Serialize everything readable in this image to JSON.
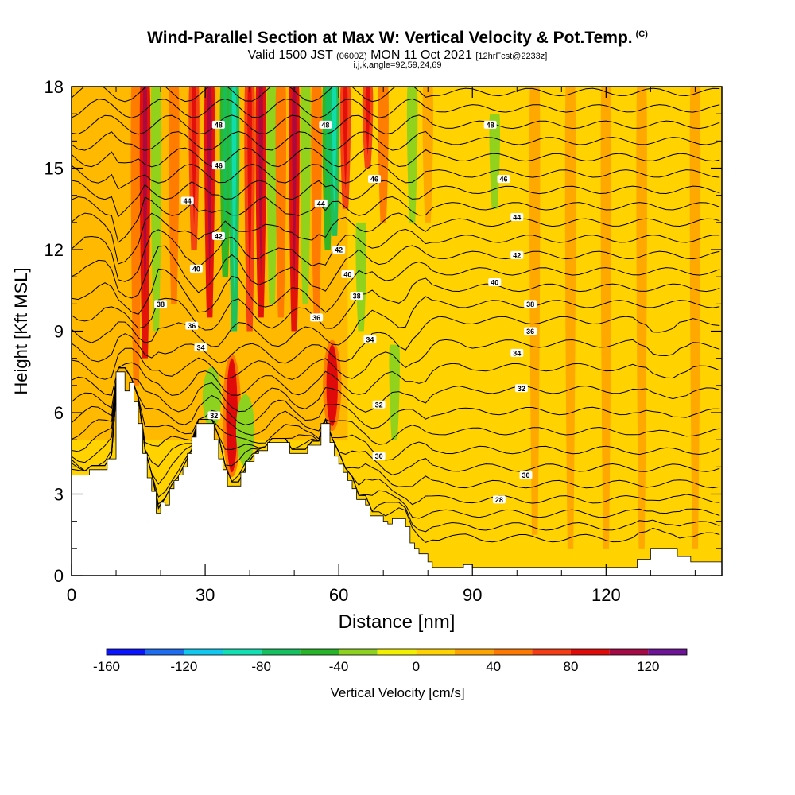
{
  "header": {
    "title": "Wind-Parallel Section at Max W: Vertical Velocity & Pot.Temp.",
    "copyright": "(C)",
    "valid_main": "Valid 1500 JST",
    "valid_utc": "(0600Z)",
    "valid_date": "MON 11 Oct 2021",
    "forecast": "[12hrFcst@2233z]",
    "params": "i,j,k,angle=92,59,24,69"
  },
  "chart_data": {
    "type": "heatmap",
    "title": "Wind-Parallel Section at Max W: Vertical Velocity & Pot.Temp.",
    "xlabel": "Distance [nm]",
    "ylabel": "Height [Kft MSL]",
    "xlim": [
      0,
      146
    ],
    "ylim": [
      0,
      18
    ],
    "xticks": [
      0,
      30,
      60,
      90,
      120
    ],
    "yticks": [
      0,
      3,
      6,
      9,
      12,
      15,
      18
    ],
    "colorbar": {
      "label": "Vertical Velocity [cm/s]",
      "ticks": [
        -160,
        -120,
        -80,
        -40,
        0,
        40,
        80,
        120
      ],
      "bins": [
        -160,
        -140,
        -120,
        -100,
        -80,
        -60,
        -40,
        -20,
        0,
        20,
        40,
        60,
        80,
        100,
        120,
        140
      ],
      "colors": [
        "#0a14ff",
        "#1e6cf0",
        "#10c8f0",
        "#10e0b4",
        "#14c060",
        "#28b428",
        "#8cd21e",
        "#f0f000",
        "#ffd200",
        "#ffa500",
        "#ff7800",
        "#f53c14",
        "#e10a0a",
        "#a50a46",
        "#6e1496"
      ]
    },
    "terrain": [
      [
        0,
        3.7
      ],
      [
        4,
        3.7
      ],
      [
        4,
        3.9
      ],
      [
        8,
        3.9
      ],
      [
        8,
        4.3
      ],
      [
        10,
        4.3
      ],
      [
        10,
        7.5
      ],
      [
        12,
        7.5
      ],
      [
        12,
        6.8
      ],
      [
        13,
        6.8
      ],
      [
        13,
        7.1
      ],
      [
        14,
        7.1
      ],
      [
        14,
        6.4
      ],
      [
        15,
        6.4
      ],
      [
        15,
        5.6
      ],
      [
        16,
        5.6
      ],
      [
        16,
        4.5
      ],
      [
        17,
        4.5
      ],
      [
        17,
        3.6
      ],
      [
        18,
        3.6
      ],
      [
        18,
        3.1
      ],
      [
        19,
        3.1
      ],
      [
        19,
        2.3
      ],
      [
        20,
        2.3
      ],
      [
        20,
        2.7
      ],
      [
        21,
        2.7
      ],
      [
        21,
        2.6
      ],
      [
        22,
        2.6
      ],
      [
        22,
        3.2
      ],
      [
        23,
        3.2
      ],
      [
        23,
        3.5
      ],
      [
        24,
        3.5
      ],
      [
        24,
        3.7
      ],
      [
        25,
        3.7
      ],
      [
        25,
        4.0
      ],
      [
        26,
        4.0
      ],
      [
        26,
        4.5
      ],
      [
        27,
        4.5
      ],
      [
        27,
        5.1
      ],
      [
        28,
        5.1
      ],
      [
        28,
        5.6
      ],
      [
        32,
        5.6
      ],
      [
        32,
        5.0
      ],
      [
        33,
        5.0
      ],
      [
        33,
        4.3
      ],
      [
        34,
        4.3
      ],
      [
        34,
        3.9
      ],
      [
        35,
        3.9
      ],
      [
        35,
        3.3
      ],
      [
        38,
        3.3
      ],
      [
        38,
        3.8
      ],
      [
        39,
        3.8
      ],
      [
        39,
        4.2
      ],
      [
        41,
        4.2
      ],
      [
        41,
        4.5
      ],
      [
        42,
        4.5
      ],
      [
        42,
        4.6
      ],
      [
        44,
        4.6
      ],
      [
        44,
        4.9
      ],
      [
        49,
        4.9
      ],
      [
        49,
        4.5
      ],
      [
        53,
        4.5
      ],
      [
        53,
        4.8
      ],
      [
        56,
        4.8
      ],
      [
        56,
        5.6
      ],
      [
        58,
        5.6
      ],
      [
        58,
        4.9
      ],
      [
        59,
        4.9
      ],
      [
        59,
        4.4
      ],
      [
        60,
        4.4
      ],
      [
        60,
        4.1
      ],
      [
        61,
        4.1
      ],
      [
        61,
        3.8
      ],
      [
        62,
        3.8
      ],
      [
        62,
        3.5
      ],
      [
        63,
        3.5
      ],
      [
        63,
        3.2
      ],
      [
        64,
        3.2
      ],
      [
        64,
        2.8
      ],
      [
        66,
        2.8
      ],
      [
        66,
        2.6
      ],
      [
        67,
        2.6
      ],
      [
        67,
        2.2
      ],
      [
        70,
        2.2
      ],
      [
        70,
        2.0
      ],
      [
        71,
        2.0
      ],
      [
        71,
        1.9
      ],
      [
        72,
        1.9
      ],
      [
        72,
        2.1
      ],
      [
        75,
        2.1
      ],
      [
        75,
        1.8
      ],
      [
        76,
        1.8
      ],
      [
        76,
        1.2
      ],
      [
        77,
        1.2
      ],
      [
        77,
        1.0
      ],
      [
        78,
        1.0
      ],
      [
        78,
        0.8
      ],
      [
        80,
        0.8
      ],
      [
        80,
        0.5
      ],
      [
        81,
        0.5
      ],
      [
        81,
        0.3
      ],
      [
        88,
        0.3
      ],
      [
        88,
        0.4
      ],
      [
        90,
        0.4
      ],
      [
        90,
        0.3
      ],
      [
        102,
        0.3
      ],
      [
        102,
        0.3
      ],
      [
        127,
        0.3
      ],
      [
        127,
        0.6
      ],
      [
        130,
        0.6
      ],
      [
        130,
        1.0
      ],
      [
        136,
        1.0
      ],
      [
        136,
        0.7
      ],
      [
        139,
        0.7
      ],
      [
        139,
        0.5
      ],
      [
        146,
        0.5
      ],
      [
        146,
        0
      ]
    ],
    "vertical_velocity_plumes": [
      {
        "x": 14.5,
        "z0": 7.0,
        "z1": 18,
        "w": 40
      },
      {
        "x": 16.5,
        "z0": 8.0,
        "z1": 18,
        "w": 80
      },
      {
        "x": 19.0,
        "z0": 9.0,
        "z1": 18,
        "w": -40
      },
      {
        "x": 23.0,
        "z0": 10.0,
        "z1": 18,
        "w": 40
      },
      {
        "x": 27.5,
        "z0": 12.0,
        "z1": 18,
        "w": 60
      },
      {
        "x": 31.0,
        "z0": 9.5,
        "z1": 18,
        "w": 80
      },
      {
        "x": 34.5,
        "z0": 11.0,
        "z1": 18,
        "w": -60
      },
      {
        "x": 36.5,
        "z0": 9.0,
        "z1": 18,
        "w": -80
      },
      {
        "x": 40.0,
        "z0": 9.0,
        "z1": 18,
        "w": 60
      },
      {
        "x": 42.5,
        "z0": 9.5,
        "z1": 18,
        "w": 80
      },
      {
        "x": 45.0,
        "z0": 10.0,
        "z1": 18,
        "w": -40
      },
      {
        "x": 47.0,
        "z0": 9.5,
        "z1": 18,
        "w": 40
      },
      {
        "x": 50.0,
        "z0": 9.0,
        "z1": 18,
        "w": 80
      },
      {
        "x": 52.5,
        "z0": 10.0,
        "z1": 18,
        "w": -40
      },
      {
        "x": 55.0,
        "z0": 9.5,
        "z1": 18,
        "w": 40
      },
      {
        "x": 57.5,
        "z0": 12.0,
        "z1": 18,
        "w": -60
      },
      {
        "x": 59.0,
        "z0": 12.5,
        "z1": 18,
        "w": -80
      },
      {
        "x": 61.5,
        "z0": 13.5,
        "z1": 18,
        "w": 60
      },
      {
        "x": 65.0,
        "z0": 9.0,
        "z1": 13.0,
        "w": -40
      },
      {
        "x": 66.5,
        "z0": 15.0,
        "z1": 18,
        "w": 60
      },
      {
        "x": 70.0,
        "z0": 13.0,
        "z1": 18,
        "w": 40
      },
      {
        "x": 72.5,
        "z0": 5.0,
        "z1": 8.5,
        "w": -40
      },
      {
        "x": 76.5,
        "z0": 13.0,
        "z1": 18,
        "w": -40
      },
      {
        "x": 80.0,
        "z0": 13.0,
        "z1": 18,
        "w": 20
      },
      {
        "x": 95.0,
        "z0": 13.5,
        "z1": 17.0,
        "w": -40
      },
      {
        "x": 104.0,
        "z0": 1.5,
        "z1": 18,
        "w": 20
      },
      {
        "x": 112.0,
        "z0": 1.0,
        "z1": 18,
        "w": 20
      },
      {
        "x": 120.0,
        "z0": 1.0,
        "z1": 18,
        "w": 20
      },
      {
        "x": 128.0,
        "z0": 1.0,
        "z1": 18,
        "w": 20
      },
      {
        "x": 140.0,
        "z0": 1.0,
        "z1": 18,
        "w": 20
      }
    ],
    "vertical_velocity_cores": [
      {
        "x": 36.0,
        "z0": 3.8,
        "z1": 8.0,
        "w": 80
      },
      {
        "x": 58.5,
        "z0": 5.5,
        "z1": 8.5,
        "w": 80
      },
      {
        "x": 31.5,
        "z0": 5.6,
        "z1": 7.5,
        "w": -40
      },
      {
        "x": 39.0,
        "z0": 4.2,
        "z1": 6.5,
        "w": -40
      }
    ],
    "potential_temperature_contours": {
      "label_values": [
        28,
        30,
        32,
        34,
        36,
        38,
        40,
        42,
        44,
        46,
        48
      ],
      "labels": [
        {
          "x": 32,
          "z": 5.9,
          "text": "32"
        },
        {
          "x": 29,
          "z": 8.4,
          "text": "34"
        },
        {
          "x": 27,
          "z": 9.2,
          "text": "36"
        },
        {
          "x": 20,
          "z": 10.0,
          "text": "38"
        },
        {
          "x": 28,
          "z": 11.3,
          "text": "40"
        },
        {
          "x": 33,
          "z": 12.5,
          "text": "42"
        },
        {
          "x": 26,
          "z": 13.8,
          "text": "44"
        },
        {
          "x": 33,
          "z": 15.1,
          "text": "46"
        },
        {
          "x": 33,
          "z": 16.6,
          "text": "48"
        },
        {
          "x": 57,
          "z": 16.6,
          "text": "48"
        },
        {
          "x": 56,
          "z": 13.7,
          "text": "44"
        },
        {
          "x": 60,
          "z": 12.0,
          "text": "42"
        },
        {
          "x": 62,
          "z": 11.1,
          "text": "40"
        },
        {
          "x": 64,
          "z": 10.3,
          "text": "38"
        },
        {
          "x": 55,
          "z": 9.5,
          "text": "36"
        },
        {
          "x": 67,
          "z": 8.7,
          "text": "34"
        },
        {
          "x": 69,
          "z": 6.3,
          "text": "32"
        },
        {
          "x": 69,
          "z": 4.4,
          "text": "30"
        },
        {
          "x": 68,
          "z": 14.6,
          "text": "46"
        },
        {
          "x": 94,
          "z": 16.6,
          "text": "48"
        },
        {
          "x": 97,
          "z": 14.6,
          "text": "46"
        },
        {
          "x": 100,
          "z": 13.2,
          "text": "44"
        },
        {
          "x": 100,
          "z": 11.8,
          "text": "42"
        },
        {
          "x": 95,
          "z": 10.8,
          "text": "40"
        },
        {
          "x": 103,
          "z": 10.0,
          "text": "38"
        },
        {
          "x": 103,
          "z": 9.0,
          "text": "36"
        },
        {
          "x": 100,
          "z": 8.2,
          "text": "34"
        },
        {
          "x": 101,
          "z": 6.9,
          "text": "32"
        },
        {
          "x": 102,
          "z": 3.7,
          "text": "30"
        },
        {
          "x": 96,
          "z": 2.8,
          "text": "28"
        }
      ]
    }
  }
}
